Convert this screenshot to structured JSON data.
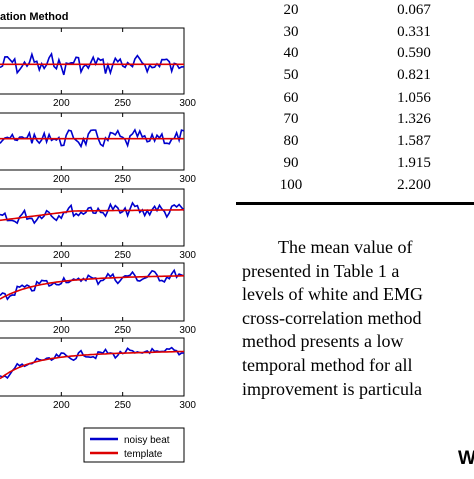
{
  "figure": {
    "title": "ation Method",
    "x_tick_labels": [
      "200",
      "250",
      "300"
    ],
    "legend": [
      {
        "label": "noisy beat",
        "color": "#0000cc"
      },
      {
        "label": "template",
        "color": "#dd0000"
      }
    ],
    "colors": {
      "noisy": "#0000cc",
      "template": "#dd0000"
    }
  },
  "chart_data": {
    "type": "line",
    "title": "ation Method",
    "x_range": [
      150,
      300
    ],
    "x_ticks": [
      200,
      250,
      300
    ],
    "series": [
      {
        "name": "noisy beat",
        "color": "#0000cc"
      },
      {
        "name": "template",
        "color": "#dd0000"
      }
    ],
    "panels": 5
  },
  "table": {
    "rows": [
      {
        "snr": "20",
        "value": "0.067"
      },
      {
        "snr": "30",
        "value": "0.331"
      },
      {
        "snr": "40",
        "value": "0.590"
      },
      {
        "snr": "50",
        "value": "0.821"
      },
      {
        "snr": "60",
        "value": "1.056"
      },
      {
        "snr": "70",
        "value": "1.326"
      },
      {
        "snr": "80",
        "value": "1.587"
      },
      {
        "snr": "90",
        "value": "1.915"
      },
      {
        "snr": "100",
        "value": "2.200"
      }
    ]
  },
  "paragraph": {
    "lines": [
      "The mean value of",
      "presented in Table 1 a",
      "levels of white and EMG",
      "cross-correlation method",
      "method presents a low",
      "temporal method for all",
      "improvement is particula"
    ]
  },
  "section_heading": "W"
}
